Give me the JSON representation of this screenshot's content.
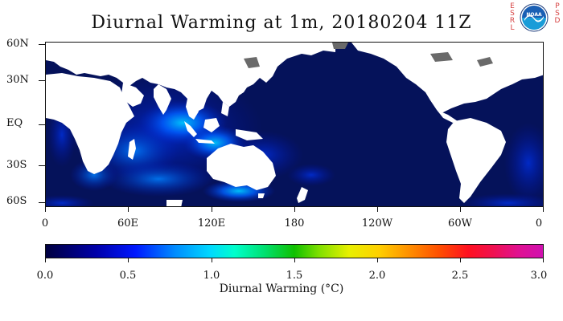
{
  "title": "Diurnal Warming at 1m, 20180204 11Z",
  "map": {
    "y_axis_labels": [
      "60N",
      "30N",
      "EQ",
      "30S",
      "60S"
    ],
    "x_axis_labels": [
      "0",
      "60E",
      "120E",
      "180",
      "120W",
      "60W",
      "0"
    ],
    "ocean_color": "#05125a",
    "land_color": "#ffffff",
    "ice_color": "#6a6a6a"
  },
  "colorbar": {
    "tick_labels": [
      "0.0",
      "0.5",
      "1.0",
      "1.5",
      "2.0",
      "2.5",
      "3.0"
    ],
    "title": "Diurnal Warming (°C)",
    "range": [
      0.0,
      3.0
    ]
  },
  "branding": {
    "left_column": [
      "E",
      "S",
      "R",
      "L"
    ],
    "right_column": [
      "P",
      "S",
      "D"
    ],
    "logo_text": "NOAA",
    "logo_icon": "noaa-logo-icon"
  }
}
